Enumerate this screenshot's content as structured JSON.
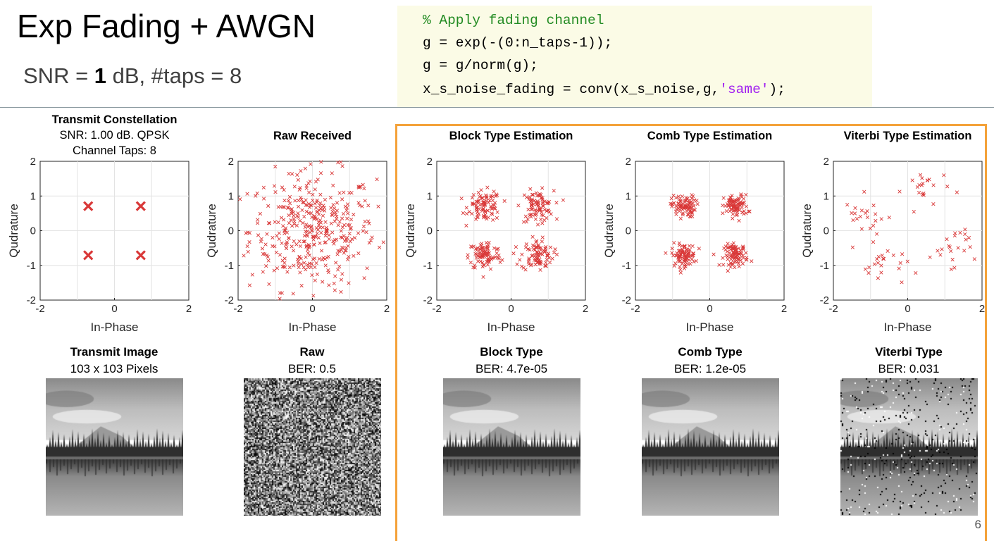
{
  "slide": {
    "title": "Exp Fading + AWGN",
    "subtitle_prefix": "SNR = ",
    "subtitle_snr": "1",
    "subtitle_suffix": " dB, #taps = 8",
    "page_number": "6",
    "accent_color": "#f4a23a"
  },
  "code": {
    "lines": [
      [
        {
          "t": "% Apply fading channel",
          "k": "comment"
        }
      ],
      [
        {
          "t": "g = exp(-(0:n_taps-1));",
          "k": "plain"
        }
      ],
      [
        {
          "t": "g = g/norm(g);",
          "k": "plain"
        }
      ],
      [
        {
          "t": "x_s_noise_fading = conv(x_s_noise,g,",
          "k": "plain"
        },
        {
          "t": "'same'",
          "k": "string"
        },
        {
          "t": ");",
          "k": "plain"
        }
      ]
    ],
    "background": "#fbfbe6",
    "comment_color": "#228b22",
    "string_color": "#a020f0"
  },
  "chart_data": [
    {
      "type": "scatter",
      "title": [
        "Transmit Constellation",
        "SNR: 1.00 dB. QPSK",
        "Channel Taps: 8"
      ],
      "xlabel": "In-Phase",
      "ylabel": "Qudrature",
      "xlim": [
        -2,
        2
      ],
      "ylim": [
        -2,
        2
      ],
      "xticks": [
        "-2",
        "0",
        "2"
      ],
      "yticks": [
        "2",
        "1",
        "0",
        "-1",
        "-2"
      ],
      "grid": true,
      "marker": "x-large",
      "color": "#d93838",
      "points": [
        [
          -0.707,
          0.707
        ],
        [
          0.707,
          0.707
        ],
        [
          -0.707,
          -0.707
        ],
        [
          0.707,
          -0.707
        ]
      ]
    },
    {
      "type": "scatter",
      "title": [
        "Raw Received"
      ],
      "xlabel": "In-Phase",
      "ylabel": "Qudrature",
      "xlim": [
        -2,
        2
      ],
      "ylim": [
        -2,
        2
      ],
      "xticks": [
        "-2",
        "0",
        "2"
      ],
      "yticks": [
        "2",
        "1",
        "0",
        "-1",
        "-2"
      ],
      "grid": true,
      "marker": "x",
      "color": "#d93838",
      "scatter_model": {
        "kind": "gaussian",
        "center": [
          0,
          0
        ],
        "spread": 0.85,
        "count": 400
      }
    },
    {
      "type": "scatter",
      "title": [
        "Block Type Estimation"
      ],
      "xlabel": "In-Phase",
      "ylabel": "Qudrature",
      "xlim": [
        -2,
        2
      ],
      "ylim": [
        -2,
        2
      ],
      "xticks": [
        "-2",
        "0",
        "2"
      ],
      "yticks": [
        "2",
        "1",
        "0",
        "-1",
        "-2"
      ],
      "grid": true,
      "marker": "x",
      "color": "#d93838",
      "scatter_model": {
        "kind": "clusters",
        "centers": [
          [
            -0.707,
            0.707
          ],
          [
            0.707,
            0.707
          ],
          [
            -0.707,
            -0.707
          ],
          [
            0.707,
            -0.707
          ]
        ],
        "spread": 0.22,
        "count_per_cluster": 90
      }
    },
    {
      "type": "scatter",
      "title": [
        "Comb Type Estimation"
      ],
      "xlabel": "In-Phase",
      "ylabel": "Qudrature",
      "xlim": [
        -2,
        2
      ],
      "ylim": [
        -2,
        2
      ],
      "xticks": [
        "-2",
        "0",
        "2"
      ],
      "yticks": [
        "2",
        "1",
        "0",
        "-1",
        "-2"
      ],
      "grid": true,
      "marker": "x",
      "color": "#d93838",
      "scatter_model": {
        "kind": "clusters",
        "centers": [
          [
            -0.707,
            0.707
          ],
          [
            0.707,
            0.707
          ],
          [
            -0.707,
            -0.707
          ],
          [
            0.707,
            -0.707
          ]
        ],
        "spread": 0.16,
        "count_per_cluster": 90
      }
    },
    {
      "type": "scatter",
      "title": [
        "Viterbi Type Estimation"
      ],
      "xlabel": "In-Phase",
      "ylabel": "Qudrature",
      "xlim": [
        -2,
        2
      ],
      "ylim": [
        -2,
        2
      ],
      "xticks": [
        "-2",
        "0",
        "2"
      ],
      "yticks": [
        "2",
        "1",
        "0",
        "-1",
        "-2"
      ],
      "grid": true,
      "marker": "x",
      "color": "#d93838",
      "scatter_model": {
        "kind": "clusters",
        "centers": [
          [
            -1.1,
            0.4
          ],
          [
            0.5,
            1.2
          ],
          [
            1.2,
            -0.4
          ],
          [
            -0.6,
            -1.0
          ]
        ],
        "spread": 0.3,
        "count_per_cluster": 22
      }
    }
  ],
  "images": [
    {
      "title": "Transmit Image",
      "caption": "103 x 103 Pixels",
      "kind": "clean"
    },
    {
      "title": "Raw",
      "caption": "BER: 0.5",
      "kind": "noise"
    },
    {
      "title": "Block Type",
      "caption": "BER: 4.7e-05",
      "kind": "clean"
    },
    {
      "title": "Comb Type",
      "caption": "BER: 1.2e-05",
      "kind": "clean"
    },
    {
      "title": "Viterbi Type",
      "caption": "BER: 0.031",
      "kind": "corrupted"
    }
  ]
}
